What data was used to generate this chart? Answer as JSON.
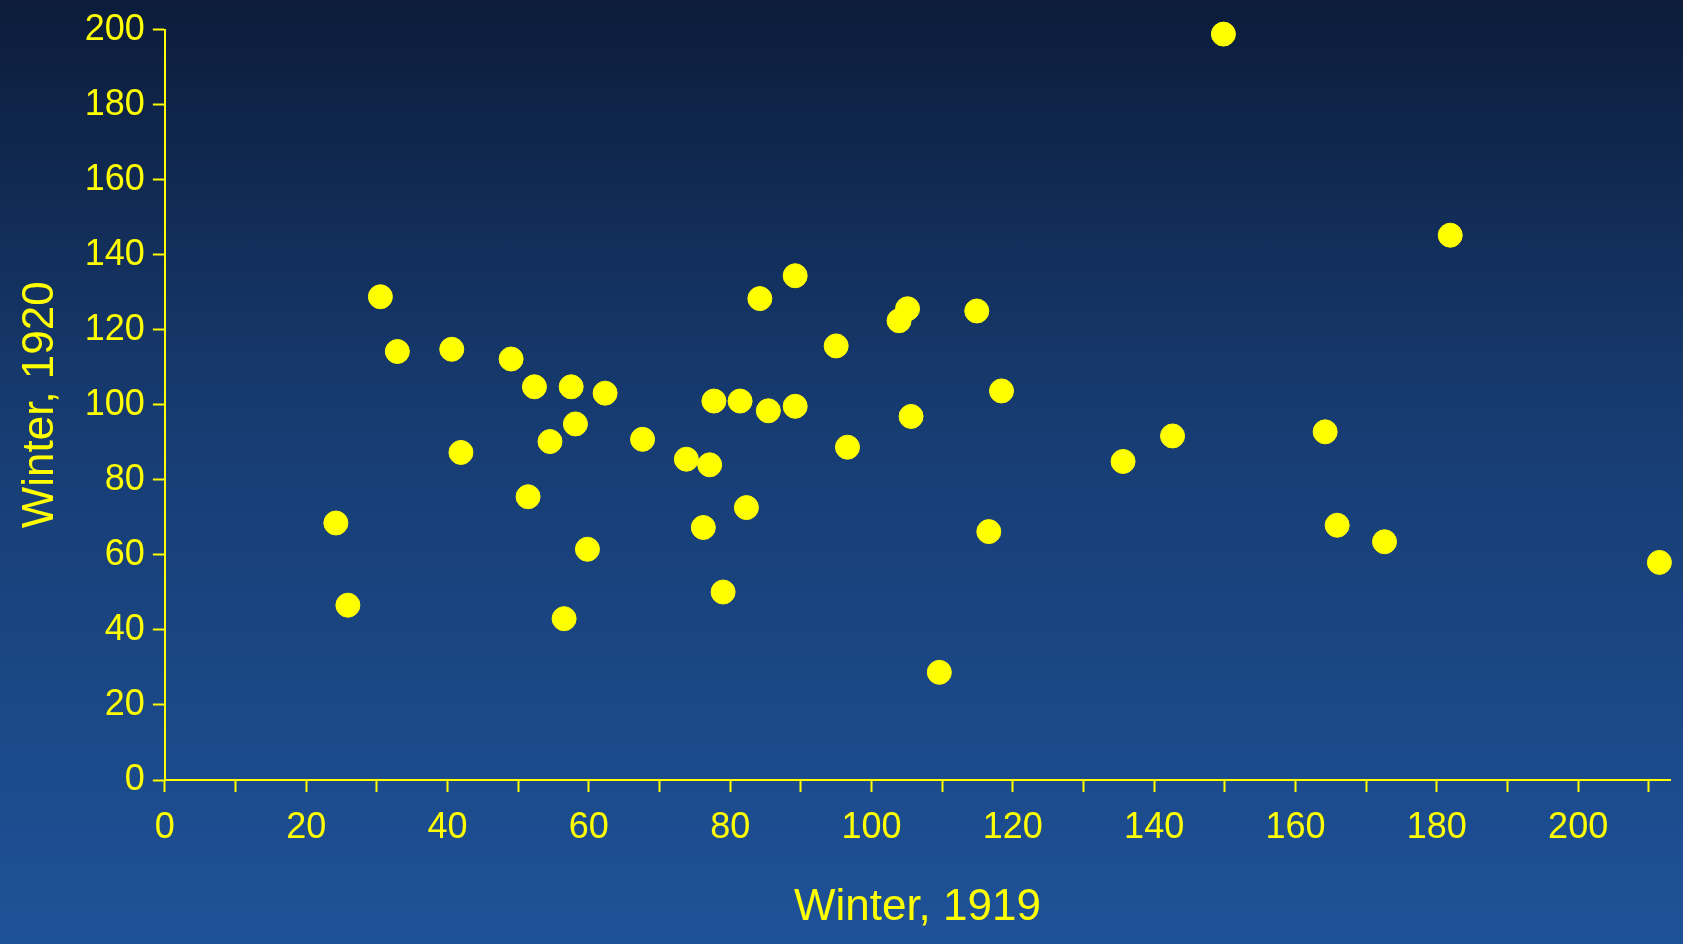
{
  "chart_data": {
    "type": "scatter",
    "xlabel": "Winter, 1919",
    "ylabel": "Winter, 1920",
    "marker": "circle",
    "legend": false,
    "xlim": [
      0,
      213
    ],
    "xticks": [
      0,
      {
        "value": 10,
        "label": null
      },
      20,
      {
        "value": 30,
        "label": null
      },
      40,
      {
        "value": 50,
        "label": null
      },
      60,
      {
        "value": 70,
        "label": null
      },
      80,
      {
        "value": 90,
        "label": null
      },
      100,
      {
        "value": 110,
        "label": null
      },
      120,
      {
        "value": 130,
        "label": null
      },
      140,
      {
        "value": 150,
        "label": null
      },
      160,
      {
        "value": 170,
        "label": null
      },
      180,
      {
        "value": 190,
        "label": null
      },
      200,
      {
        "value": 210,
        "label": null
      }
    ],
    "ylim": [
      0,
      200
    ],
    "yticks": [
      0,
      20,
      40,
      60,
      80,
      100,
      120,
      140,
      160,
      180,
      200
    ],
    "series": [
      {
        "color": "#ffff00",
        "x": [
          24.2,
          25.9,
          30.5,
          32.9,
          40.6,
          41.9,
          49.0,
          51.4,
          52.3,
          54.5,
          56.5,
          57.5,
          58.1,
          59.8,
          62.3,
          67.6,
          73.8,
          76.2,
          77.1,
          77.7,
          79.0,
          81.4,
          82.3,
          84.2,
          85.4,
          89.2,
          89.2,
          95.0,
          96.6,
          103.9,
          105.1,
          105.6,
          109.6,
          114.9,
          116.6,
          118.4,
          135.6,
          142.6,
          149.8,
          164.2,
          165.9,
          172.6,
          181.9,
          211.5
        ],
        "values": [
          68.5,
          46.6,
          128.8,
          114.2,
          114.8,
          87.3,
          112.2,
          75.5,
          104.8,
          90.2,
          43.0,
          104.8,
          94.9,
          61.5,
          103.1,
          90.8,
          85.5,
          67.3,
          84.0,
          101.0,
          50.1,
          101.0,
          72.6,
          128.3,
          98.4,
          134.4,
          99.6,
          115.7,
          88.7,
          122.4,
          125.6,
          96.9,
          28.7,
          125.0,
          66.2,
          103.7,
          84.9,
          91.7,
          198.8,
          92.8,
          67.9,
          63.5,
          145.2,
          58.0
        ]
      }
    ]
  }
}
